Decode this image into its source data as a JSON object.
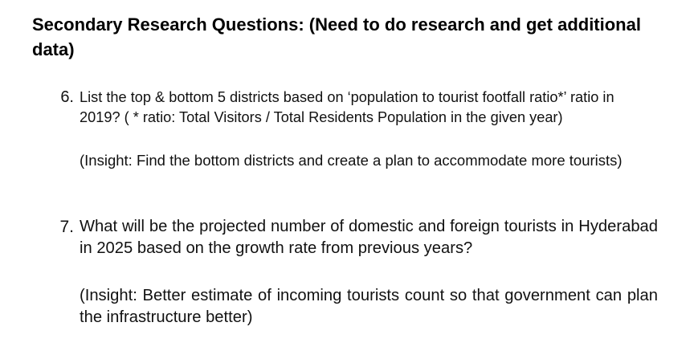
{
  "heading": "Secondary Research Questions: (Need to do research and get additional data)",
  "questions": [
    {
      "number": "6.",
      "text": "List the top & bottom 5 districts based on ‘population to tourist footfall ratio*’ ratio in 2019? ( * ratio: Total Visitors / Total Residents Population in the given year)",
      "insight": "(Insight: Find the bottom districts and create a plan to accommodate more tourists)"
    },
    {
      "number": "7.",
      "text": "What will be the projected number of domestic and foreign tourists in Hyderabad in 2025 based on the growth rate from previous years?",
      "insight": "(Insight: Better estimate of incoming tourists count so that government can plan the infrastructure better)"
    }
  ]
}
